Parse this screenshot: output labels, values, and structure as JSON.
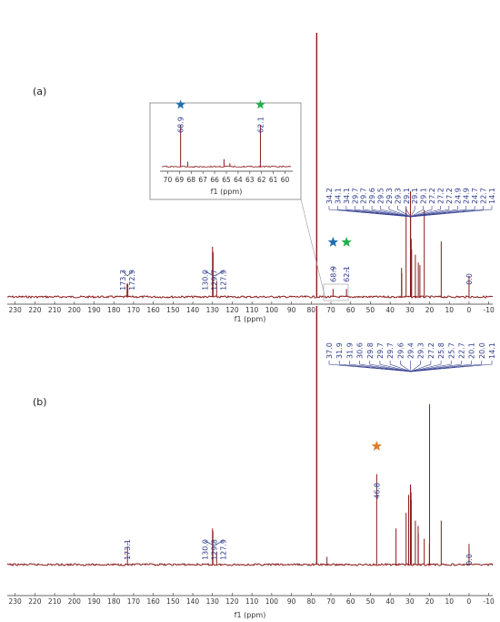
{
  "chart_data": [
    {
      "type": "line",
      "panel_label": "(a)",
      "xlabel": "f1 (ppm)",
      "xlim": [
        234,
        -12
      ],
      "x_ticks": [
        "230",
        "220",
        "210",
        "200",
        "190",
        "180",
        "170",
        "160",
        "150",
        "140",
        "130",
        "120",
        "110",
        "100",
        "90",
        "80",
        "70",
        "60",
        "50",
        "40",
        "30",
        "20",
        "10",
        "0",
        "-10"
      ],
      "series": [
        {
          "peaks": [
            {
              "x": 173.3,
              "y": 0.05
            },
            {
              "x": 172.9,
              "y": 0.05
            },
            {
              "x": 130.0,
              "y": 0.19
            },
            {
              "x": 129.7,
              "y": 0.17
            },
            {
              "x": 127.9,
              "y": 0.06
            },
            {
              "x": 77.2,
              "y": 1.0
            },
            {
              "x": 68.9,
              "y": 0.03
            },
            {
              "x": 62.1,
              "y": 0.03
            },
            {
              "x": 34.2,
              "y": 0.11
            },
            {
              "x": 34.1,
              "y": 0.09
            },
            {
              "x": 31.9,
              "y": 0.34
            },
            {
              "x": 29.7,
              "y": 0.4
            },
            {
              "x": 29.6,
              "y": 0.3
            },
            {
              "x": 29.3,
              "y": 0.22
            },
            {
              "x": 29.1,
              "y": 0.18
            },
            {
              "x": 27.2,
              "y": 0.16
            },
            {
              "x": 25.7,
              "y": 0.13
            },
            {
              "x": 24.9,
              "y": 0.12
            },
            {
              "x": 22.7,
              "y": 0.33
            },
            {
              "x": 14.1,
              "y": 0.21
            },
            {
              "x": 0.0,
              "y": 0.08
            }
          ]
        }
      ],
      "peak_labels_left": [
        {
          "group": [
            "173.3",
            "172.9"
          ],
          "x": 173.1
        },
        {
          "group": [
            "130.0",
            "129.7",
            "127.9"
          ],
          "x": 129.2
        }
      ],
      "peak_labels_right": [
        "34.2",
        "34.1",
        "34.1",
        "29.7",
        "29.7",
        "29.6",
        "29.5",
        "29.3",
        "29.3",
        "29.1",
        "29.1",
        "29.1",
        "27.2",
        "27.2",
        "27.2",
        "24.9",
        "24.9",
        "24.7",
        "22.7",
        "14.1"
      ],
      "marker_labels": [
        {
          "label": "68.9",
          "x": 68.9,
          "star_color": "#1f6fb2"
        },
        {
          "label": "62.1",
          "x": 62.1,
          "star_color": "#22b04b"
        }
      ],
      "tms_label": "0.0",
      "inset": {
        "xlabel": "f1 (ppm)",
        "xlim": [
          70.5,
          59.5
        ],
        "x_ticks": [
          "70",
          "69",
          "68",
          "67",
          "66",
          "65",
          "64",
          "63",
          "62",
          "61",
          "60"
        ],
        "peaks": [
          {
            "x": 68.9,
            "y": 1.0,
            "label": "68.9",
            "star_color": "#1f6fb2"
          },
          {
            "x": 68.3,
            "y": 0.12
          },
          {
            "x": 65.2,
            "y": 0.18
          },
          {
            "x": 64.7,
            "y": 0.08
          },
          {
            "x": 62.1,
            "y": 1.0,
            "label": "62.1",
            "star_color": "#22b04b"
          }
        ]
      }
    },
    {
      "type": "line",
      "panel_label": "(b)",
      "xlabel": "f1 (ppm)",
      "xlim": [
        234,
        -12
      ],
      "x_ticks": [
        "230",
        "220",
        "210",
        "200",
        "190",
        "180",
        "170",
        "160",
        "150",
        "140",
        "130",
        "120",
        "110",
        "100",
        "90",
        "80",
        "70",
        "60",
        "50",
        "40",
        "30",
        "20",
        "10",
        "0",
        "-10"
      ],
      "series": [
        {
          "peaks": [
            {
              "x": 173.1,
              "y": 0.07
            },
            {
              "x": 130.0,
              "y": 0.14
            },
            {
              "x": 129.8,
              "y": 0.13
            },
            {
              "x": 127.9,
              "y": 0.05
            },
            {
              "x": 77.2,
              "y": 1.0
            },
            {
              "x": 72.0,
              "y": 0.03
            },
            {
              "x": 46.8,
              "y": 0.35
            },
            {
              "x": 37.0,
              "y": 0.14
            },
            {
              "x": 31.9,
              "y": 0.2
            },
            {
              "x": 30.6,
              "y": 0.27
            },
            {
              "x": 29.7,
              "y": 0.31
            },
            {
              "x": 29.6,
              "y": 0.3
            },
            {
              "x": 29.4,
              "y": 0.28
            },
            {
              "x": 29.3,
              "y": 0.25
            },
            {
              "x": 27.2,
              "y": 0.17
            },
            {
              "x": 25.8,
              "y": 0.15
            },
            {
              "x": 25.7,
              "y": 0.12
            },
            {
              "x": 22.7,
              "y": 0.1
            },
            {
              "x": 20.1,
              "y": 0.08
            },
            {
              "x": 20.0,
              "y": 0.62
            },
            {
              "x": 14.1,
              "y": 0.17
            },
            {
              "x": 0.0,
              "y": 0.08
            }
          ]
        }
      ],
      "peak_labels_left": [
        {
          "group": [
            "173.1"
          ],
          "x": 173.1
        },
        {
          "group": [
            "130.0",
            "129.8",
            "127.9"
          ],
          "x": 129.3
        }
      ],
      "peak_labels_right": [
        "37.0",
        "31.9",
        "31.9",
        "30.6",
        "29.8",
        "29.7",
        "29.7",
        "29.6",
        "29.4",
        "29.3",
        "27.2",
        "25.8",
        "25.7",
        "22.7",
        "20.1",
        "20.0",
        "14.1"
      ],
      "marker_labels": [
        {
          "label": "46.8",
          "x": 46.8,
          "star_color": "#e07b2a"
        }
      ],
      "tms_label": "0.0"
    }
  ],
  "colors": {
    "spectrum": "#8b1a1a",
    "baseline": "#8b1a1a",
    "label_text": "#2e3a8c",
    "bracket": "#2e3a8c",
    "axis": "#333333",
    "inset_border": "#7f7f7f"
  }
}
